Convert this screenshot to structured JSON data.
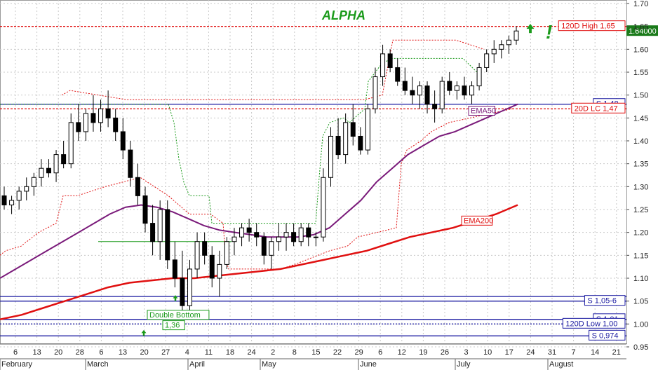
{
  "chart_data": {
    "type": "candlestick",
    "title": "ALPHA",
    "y_axis": {
      "min": 0.95,
      "max": 1.7,
      "ticks": [
        "1.70",
        "1.65",
        "1.60",
        "1.55",
        "1.50",
        "1.45",
        "1.40",
        "1.35",
        "1.30",
        "1.25",
        "1.20",
        "1.15",
        "1.10",
        "1.05",
        "1.00",
        "0.95"
      ]
    },
    "x_axis": {
      "day_ticks": [
        "6",
        "13",
        "20",
        "28",
        "6",
        "13",
        "20",
        "27",
        "4",
        "11",
        "18",
        "24",
        "2",
        "8",
        "15",
        "22",
        "29",
        "6",
        "12",
        "19",
        "26",
        "3",
        "10",
        "17",
        "24",
        "31",
        "7",
        "14",
        "21"
      ],
      "months": [
        "February",
        "March",
        "April",
        "May",
        "June",
        "July",
        "August"
      ]
    },
    "candles": [
      [
        1.28,
        1.3,
        1.25,
        1.26
      ],
      [
        1.26,
        1.28,
        1.24,
        1.27
      ],
      [
        1.27,
        1.3,
        1.25,
        1.29
      ],
      [
        1.29,
        1.32,
        1.27,
        1.3
      ],
      [
        1.3,
        1.33,
        1.28,
        1.32
      ],
      [
        1.32,
        1.36,
        1.3,
        1.34
      ],
      [
        1.34,
        1.36,
        1.32,
        1.33
      ],
      [
        1.33,
        1.38,
        1.31,
        1.37
      ],
      [
        1.37,
        1.4,
        1.34,
        1.35
      ],
      [
        1.35,
        1.46,
        1.34,
        1.44
      ],
      [
        1.44,
        1.48,
        1.4,
        1.42
      ],
      [
        1.42,
        1.47,
        1.4,
        1.46
      ],
      [
        1.46,
        1.5,
        1.42,
        1.44
      ],
      [
        1.44,
        1.49,
        1.42,
        1.47
      ],
      [
        1.47,
        1.51,
        1.43,
        1.45
      ],
      [
        1.45,
        1.47,
        1.4,
        1.42
      ],
      [
        1.42,
        1.45,
        1.36,
        1.38
      ],
      [
        1.38,
        1.4,
        1.3,
        1.32
      ],
      [
        1.32,
        1.35,
        1.26,
        1.28
      ],
      [
        1.28,
        1.3,
        1.2,
        1.22
      ],
      [
        1.22,
        1.26,
        1.15,
        1.18
      ],
      [
        1.18,
        1.27,
        1.14,
        1.25
      ],
      [
        1.25,
        1.27,
        1.12,
        1.14
      ],
      [
        1.14,
        1.18,
        1.08,
        1.1
      ],
      [
        1.1,
        1.16,
        1.01,
        1.04
      ],
      [
        1.04,
        1.14,
        1.02,
        1.12
      ],
      [
        1.12,
        1.2,
        1.1,
        1.18
      ],
      [
        1.18,
        1.2,
        1.13,
        1.15
      ],
      [
        1.15,
        1.17,
        1.08,
        1.1
      ],
      [
        1.1,
        1.16,
        1.06,
        1.13
      ],
      [
        1.13,
        1.19,
        1.12,
        1.18
      ],
      [
        1.18,
        1.21,
        1.15,
        1.19
      ],
      [
        1.19,
        1.22,
        1.17,
        1.21
      ],
      [
        1.21,
        1.23,
        1.18,
        1.2
      ],
      [
        1.2,
        1.22,
        1.17,
        1.19
      ],
      [
        1.19,
        1.2,
        1.13,
        1.15
      ],
      [
        1.15,
        1.19,
        1.12,
        1.18
      ],
      [
        1.18,
        1.22,
        1.16,
        1.19
      ],
      [
        1.19,
        1.22,
        1.16,
        1.2
      ],
      [
        1.2,
        1.22,
        1.17,
        1.18
      ],
      [
        1.18,
        1.22,
        1.17,
        1.21
      ],
      [
        1.21,
        1.22,
        1.17,
        1.19
      ],
      [
        1.19,
        1.2,
        1.17,
        1.19
      ],
      [
        1.19,
        1.34,
        1.18,
        1.32
      ],
      [
        1.32,
        1.43,
        1.3,
        1.41
      ],
      [
        1.41,
        1.45,
        1.36,
        1.37
      ],
      [
        1.37,
        1.46,
        1.35,
        1.44
      ],
      [
        1.44,
        1.48,
        1.39,
        1.41
      ],
      [
        1.41,
        1.43,
        1.37,
        1.38
      ],
      [
        1.38,
        1.48,
        1.37,
        1.47
      ],
      [
        1.47,
        1.56,
        1.46,
        1.54
      ],
      [
        1.54,
        1.61,
        1.52,
        1.59
      ],
      [
        1.59,
        1.6,
        1.55,
        1.56
      ],
      [
        1.56,
        1.58,
        1.52,
        1.53
      ],
      [
        1.53,
        1.56,
        1.5,
        1.51
      ],
      [
        1.51,
        1.54,
        1.48,
        1.5
      ],
      [
        1.5,
        1.53,
        1.47,
        1.52
      ],
      [
        1.52,
        1.53,
        1.46,
        1.48
      ],
      [
        1.48,
        1.51,
        1.44,
        1.47
      ],
      [
        1.47,
        1.54,
        1.46,
        1.53
      ],
      [
        1.53,
        1.55,
        1.5,
        1.51
      ],
      [
        1.51,
        1.53,
        1.49,
        1.52
      ],
      [
        1.52,
        1.54,
        1.49,
        1.5
      ],
      [
        1.5,
        1.53,
        1.48,
        1.52
      ],
      [
        1.52,
        1.57,
        1.51,
        1.56
      ],
      [
        1.56,
        1.6,
        1.55,
        1.59
      ],
      [
        1.59,
        1.62,
        1.57,
        1.6
      ],
      [
        1.6,
        1.62,
        1.58,
        1.61
      ],
      [
        1.61,
        1.63,
        1.59,
        1.62
      ],
      [
        1.62,
        1.65,
        1.61,
        1.64
      ]
    ],
    "ema50": [
      1.1,
      1.12,
      1.14,
      1.16,
      1.18,
      1.2,
      1.22,
      1.24,
      1.255,
      1.26,
      1.255,
      1.245,
      1.23,
      1.215,
      1.205,
      1.2,
      1.195,
      1.19,
      1.19,
      1.19,
      1.195,
      1.21,
      1.24,
      1.27,
      1.31,
      1.34,
      1.37,
      1.39,
      1.41,
      1.42,
      1.435,
      1.45,
      1.465,
      1.48
    ],
    "ema200": [
      1.01,
      1.02,
      1.035,
      1.05,
      1.065,
      1.08,
      1.09,
      1.095,
      1.1,
      1.1,
      1.105,
      1.11,
      1.115,
      1.12,
      1.13,
      1.14,
      1.15,
      1.16,
      1.175,
      1.19,
      1.2,
      1.21,
      1.225,
      1.24,
      1.26
    ],
    "lines": {
      "high_120d": "120D High 1,65",
      "price": "1.64000",
      "s148": "S 1,48",
      "lc20d": "20D LC 1,47",
      "s1056": "S 1,05-6",
      "s101": "S 1,01",
      "low_120d": "120D Low 1,00",
      "s0974": "S 0,974"
    },
    "annotations": {
      "ema50": "EMA50",
      "ema200": "EMA200",
      "double_bottom": "Double Bottom",
      "db_value": "1,36",
      "exclaim": "!"
    },
    "colors": {
      "up": "#ffffff",
      "down": "#000000",
      "ema50": "#7a1a7a",
      "ema200": "#e01010",
      "support": "#1a1aa0",
      "resistance": "#e01010",
      "green": "#1a9a1a"
    }
  }
}
